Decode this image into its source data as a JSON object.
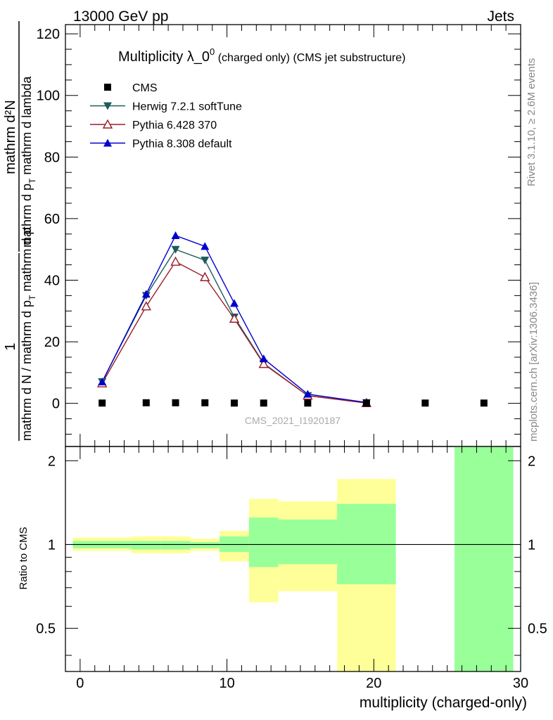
{
  "header": {
    "left": "13000 GeV pp",
    "right": "Jets"
  },
  "side": {
    "rivet": "Rivet 3.1.10, ≥ 2.6M events",
    "mcplots": "mcplots.cern.ch [arXiv:1306.3436]"
  },
  "watermark": "CMS_2021_I1920187",
  "colors": {
    "cms": "#000000",
    "herwig": "#1f5c5c",
    "pythia6": "#9b1b2a",
    "pythia8": "#0000cc",
    "band_inner": "#99ff99",
    "band_outer": "#ffff99"
  },
  "chart_data": [
    {
      "type": "line",
      "title_main": "Multiplicity λ_0",
      "title_sup": "0",
      "title_rest": " (charged only) (CMS jet substructure)",
      "ylabel_num": "mathrm d²N",
      "ylabel_den": "mathrm d p",
      "ylabel_den_sub": "T",
      "ylabel_den_rest": " mathrm d lambda",
      "ylabel_pre_num": "1",
      "ylabel_pre_den": "mathrm d N / mathrm d p",
      "ylabel_pre_den_sub": "T",
      "ylabel_pre_den_rest": " mathrm d p",
      "xlim": [
        -1,
        30
      ],
      "ylim": [
        -14,
        123
      ],
      "yticks": [
        0,
        20,
        40,
        60,
        80,
        100,
        120
      ],
      "ytick_labels": [
        "0",
        "20",
        "40",
        "60",
        "80",
        "100",
        "120"
      ],
      "series": [
        {
          "name": "CMS",
          "marker": "square",
          "x": [
            1.5,
            4.5,
            6.5,
            8.5,
            10.5,
            12.5,
            15.5,
            19.5,
            23.5,
            27.5
          ],
          "values": [
            0.1,
            0.2,
            0.2,
            0.2,
            0.1,
            0.1,
            0.1,
            0.1,
            0.1,
            0.1
          ]
        },
        {
          "name": "Herwig 7.2.1 softTune",
          "marker": "triangle-down",
          "x": [
            1.5,
            4.5,
            6.5,
            8.5,
            10.5,
            12.5,
            15.5,
            19.5
          ],
          "values": [
            7,
            35,
            50,
            46.5,
            28,
            13,
            2.5,
            0.2
          ]
        },
        {
          "name": "Pythia 6.428 370",
          "marker": "triangle-open",
          "x": [
            1.5,
            4.5,
            6.5,
            8.5,
            10.5,
            12.5,
            15.5,
            19.5
          ],
          "values": [
            6.5,
            31.5,
            46,
            41,
            27.5,
            12.8,
            2.5,
            0.1
          ]
        },
        {
          "name": "Pythia 8.308 default",
          "marker": "triangle-up",
          "x": [
            1.5,
            4.5,
            6.5,
            8.5,
            10.5,
            12.5,
            15.5,
            19.5
          ],
          "values": [
            7,
            35.5,
            54.5,
            51,
            32.5,
            14.5,
            3,
            0.3
          ]
        }
      ]
    },
    {
      "type": "area",
      "ylabel": "Ratio to CMS",
      "xlabel": "multiplicity (charged-only)",
      "xlim": [
        -1,
        30
      ],
      "ylim": [
        0.35,
        2.25
      ],
      "xticks": [
        0,
        10,
        20,
        30
      ],
      "xtick_labels": [
        "0",
        "10",
        "20",
        "30"
      ],
      "yticks": [
        0.5,
        1,
        2
      ],
      "ytick_labels": [
        "0.5",
        "1",
        "2"
      ],
      "bins": [
        {
          "lo": -0.5,
          "hi": 3.5,
          "inner": [
            0.97,
            1.03
          ],
          "outer": [
            0.95,
            1.06
          ]
        },
        {
          "lo": 3.5,
          "hi": 5.5,
          "inner": [
            0.96,
            1.03
          ],
          "outer": [
            0.93,
            1.07
          ]
        },
        {
          "lo": 5.5,
          "hi": 7.5,
          "inner": [
            0.96,
            1.03
          ],
          "outer": [
            0.93,
            1.07
          ]
        },
        {
          "lo": 7.5,
          "hi": 9.5,
          "inner": [
            0.97,
            1.02
          ],
          "outer": [
            0.95,
            1.05
          ]
        },
        {
          "lo": 9.5,
          "hi": 11.5,
          "inner": [
            0.94,
            1.07
          ],
          "outer": [
            0.87,
            1.12
          ]
        },
        {
          "lo": 11.5,
          "hi": 13.5,
          "inner": [
            0.83,
            1.25
          ],
          "outer": [
            0.62,
            1.46
          ]
        },
        {
          "lo": 13.5,
          "hi": 17.5,
          "inner": [
            0.85,
            1.23
          ],
          "outer": [
            0.68,
            1.43
          ]
        },
        {
          "lo": 17.5,
          "hi": 21.5,
          "inner": [
            0.72,
            1.4
          ],
          "outer": [
            0.35,
            1.72
          ]
        },
        {
          "lo": 25.5,
          "hi": 29.5,
          "inner": [
            0.35,
            2.25
          ],
          "outer": null
        }
      ]
    }
  ]
}
